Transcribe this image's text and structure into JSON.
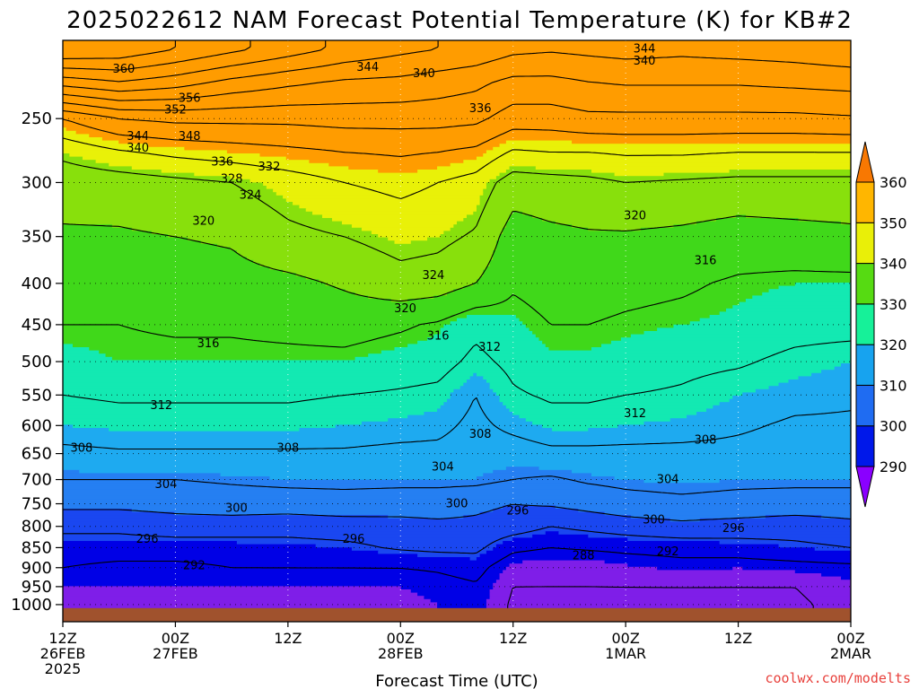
{
  "title": "2025022612 NAM Forecast Potential Temperature (K) for KB#2",
  "credit": "coolwx.com/modelts",
  "chart_data": {
    "type": "heatmap",
    "title": "2025022612 NAM Forecast Potential Temperature (K) for KB#2",
    "xlabel": "Forecast Time (UTC)",
    "ylabel": "",
    "x_ticks": [
      {
        "hour": 0,
        "lines": [
          "12Z",
          "26FEB",
          "2025"
        ]
      },
      {
        "hour": 12,
        "lines": [
          "00Z",
          "27FEB"
        ]
      },
      {
        "hour": 24,
        "lines": [
          "12Z"
        ]
      },
      {
        "hour": 36,
        "lines": [
          "00Z",
          "28FEB"
        ]
      },
      {
        "hour": 48,
        "lines": [
          "12Z"
        ]
      },
      {
        "hour": 60,
        "lines": [
          "00Z",
          "1MAR"
        ]
      },
      {
        "hour": 72,
        "lines": [
          "12Z"
        ]
      },
      {
        "hour": 84,
        "lines": [
          "00Z",
          "2MAR"
        ]
      }
    ],
    "xlim": [
      0,
      84
    ],
    "y_ticks": [
      250,
      300,
      350,
      400,
      450,
      500,
      550,
      600,
      650,
      700,
      750,
      800,
      850,
      900,
      950,
      1000
    ],
    "ylim": [
      200,
      1050
    ],
    "y_scale": "log",
    "y_inverted": true,
    "grid": true,
    "colorbar": {
      "levels": [
        290,
        300,
        310,
        320,
        330,
        340,
        350,
        360
      ],
      "colors": [
        "#8a00ff",
        "#0018ea",
        "#1f6cf2",
        "#17a3ef",
        "#16f199",
        "#56db12",
        "#e9ef08",
        "#ffb600",
        "#f87802"
      ]
    },
    "fill_colors": {
      "285": "#7f1ee8",
      "290": "#0000e6",
      "295": "#1a47f0",
      "300": "#257ff2",
      "305": "#1eaaf0",
      "310": "#13e9b2",
      "315": "#40d81a",
      "320": "#88e00c",
      "325": "#e9f108",
      "330": "#ff9c00"
    },
    "ground_color": "#a0522d",
    "pressure_levels": [
      1000,
      950,
      900,
      850,
      800,
      750,
      700,
      650,
      600,
      550,
      500,
      450,
      400,
      350,
      300,
      275,
      250,
      225,
      205
    ],
    "times": [
      0,
      6,
      12,
      18,
      24,
      30,
      36,
      40,
      44,
      48,
      52,
      56,
      60,
      66,
      72,
      78,
      84
    ],
    "theta": [
      [
        289,
        289.5,
        289.5,
        289.5,
        289.5,
        289.5,
        289.5,
        290,
        291,
        287.5,
        287.5,
        287.5,
        287.5,
        287.5,
        287.5,
        287.5,
        289
      ],
      [
        290,
        290,
        290,
        290,
        290,
        290,
        290,
        290.5,
        291.5,
        288,
        288,
        288,
        288,
        288,
        288,
        288,
        289.5
      ],
      [
        292,
        291,
        291,
        292,
        292,
        292,
        292,
        292.5,
        293.5,
        289,
        288.5,
        288.5,
        289.5,
        290.5,
        290,
        290.5,
        291
      ],
      [
        294,
        294,
        294,
        294,
        294.5,
        295,
        296.5,
        297,
        297,
        293,
        292,
        292.5,
        293,
        293.5,
        294,
        295,
        296
      ],
      [
        297,
        297,
        298,
        298,
        297.5,
        298,
        298.5,
        299,
        299,
        298,
        296,
        297,
        298,
        299,
        298.5,
        298,
        299
      ],
      [
        301,
        301,
        301.5,
        302,
        302,
        302.5,
        302,
        302,
        301,
        300,
        300.5,
        301.5,
        302.5,
        303,
        302.5,
        302,
        302
      ],
      [
        304,
        304,
        304,
        304.5,
        305,
        305,
        305,
        305,
        305,
        304,
        303.5,
        304.5,
        305,
        305.5,
        305,
        305,
        305
      ],
      [
        307,
        307.5,
        307.5,
        307.5,
        307.5,
        307.5,
        307,
        307,
        306,
        306,
        307,
        307,
        307,
        307,
        307,
        306.5,
        306
      ],
      [
        310,
        310.5,
        310.5,
        310.5,
        310.5,
        310,
        309.5,
        309,
        307,
        309,
        310.5,
        310.5,
        310,
        309.5,
        308.5,
        307.5,
        307.5
      ],
      [
        312,
        312.5,
        312.5,
        312.5,
        312.5,
        312,
        311.5,
        311,
        308,
        311.5,
        312.5,
        312.5,
        312,
        311.5,
        310,
        309,
        308.5
      ],
      [
        314,
        315,
        315,
        315,
        315,
        315,
        314,
        313.5,
        311,
        313,
        314.5,
        314.5,
        314,
        313,
        312.5,
        311,
        310
      ],
      [
        316,
        316,
        316.5,
        316.5,
        317,
        317.5,
        316.5,
        315.5,
        313,
        314.5,
        316,
        316,
        315.5,
        315,
        314.5,
        313.5,
        313.5
      ],
      [
        318,
        317.5,
        318,
        318.5,
        319,
        320.5,
        322.5,
        322,
        320,
        316.5,
        317.5,
        317.5,
        317,
        316.5,
        315.5,
        315,
        315
      ],
      [
        319.5,
        319.5,
        320,
        320.5,
        323,
        324,
        325.5,
        325,
        323.5,
        318,
        319,
        319.5,
        319.5,
        319,
        318,
        318.5,
        319
      ],
      [
        321.5,
        322,
        323,
        324,
        326,
        328,
        329,
        328,
        326.5,
        322,
        322.5,
        323,
        324,
        323.5,
        323,
        323,
        323
      ],
      [
        325,
        327.5,
        329,
        330,
        331,
        332,
        332.5,
        332,
        331,
        327.5,
        328,
        328,
        328.5,
        328.5,
        328,
        328,
        328
      ],
      [
        332,
        336,
        337,
        337,
        337,
        337.5,
        337.5,
        337.5,
        337,
        334,
        334,
        335,
        335,
        335,
        335,
        335,
        335.5
      ],
      [
        350,
        352,
        350,
        347,
        345,
        343.5,
        343,
        342,
        341,
        339,
        339,
        340,
        340.5,
        340.5,
        340.5,
        341,
        341.5
      ],
      [
        364,
        363,
        360,
        357,
        354,
        351,
        349,
        348,
        347,
        345,
        344.5,
        345,
        345.5,
        345,
        345.5,
        346,
        347
      ]
    ],
    "contour_levels": [
      288,
      292,
      296,
      300,
      304,
      308,
      312,
      316,
      320,
      324,
      328,
      332,
      336,
      340,
      344,
      348,
      352,
      356,
      360
    ],
    "contour_labels": [
      {
        "text": "360",
        "hour": 6.5,
        "p": 217
      },
      {
        "text": "356",
        "hour": 13.5,
        "p": 236
      },
      {
        "text": "352",
        "hour": 12,
        "p": 244
      },
      {
        "text": "348",
        "hour": 13.5,
        "p": 263
      },
      {
        "text": "344",
        "hour": 8,
        "p": 263
      },
      {
        "text": "340",
        "hour": 8,
        "p": 272
      },
      {
        "text": "344",
        "hour": 32.5,
        "p": 216
      },
      {
        "text": "340",
        "hour": 38.5,
        "p": 220
      },
      {
        "text": "344",
        "hour": 62,
        "p": 205
      },
      {
        "text": "340",
        "hour": 62,
        "p": 212
      },
      {
        "text": "336",
        "hour": 44.5,
        "p": 243
      },
      {
        "text": "336",
        "hour": 17,
        "p": 283
      },
      {
        "text": "332",
        "hour": 22,
        "p": 287
      },
      {
        "text": "328",
        "hour": 18,
        "p": 297
      },
      {
        "text": "324",
        "hour": 20,
        "p": 311
      },
      {
        "text": "320",
        "hour": 15,
        "p": 335
      },
      {
        "text": "320",
        "hour": 61,
        "p": 330
      },
      {
        "text": "324",
        "hour": 39.5,
        "p": 391
      },
      {
        "text": "316",
        "hour": 68.5,
        "p": 375
      },
      {
        "text": "320",
        "hour": 36.5,
        "p": 430
      },
      {
        "text": "316",
        "hour": 15.5,
        "p": 475
      },
      {
        "text": "316",
        "hour": 40,
        "p": 465
      },
      {
        "text": "312",
        "hour": 45.5,
        "p": 480
      },
      {
        "text": "312",
        "hour": 10.5,
        "p": 567
      },
      {
        "text": "312",
        "hour": 61,
        "p": 580
      },
      {
        "text": "308",
        "hour": 44.5,
        "p": 615
      },
      {
        "text": "308",
        "hour": 2,
        "p": 640
      },
      {
        "text": "308",
        "hour": 24,
        "p": 640
      },
      {
        "text": "308",
        "hour": 68.5,
        "p": 625
      },
      {
        "text": "304",
        "hour": 40.5,
        "p": 675
      },
      {
        "text": "304",
        "hour": 11,
        "p": 710
      },
      {
        "text": "304",
        "hour": 64.5,
        "p": 700
      },
      {
        "text": "300",
        "hour": 18.5,
        "p": 760
      },
      {
        "text": "300",
        "hour": 42,
        "p": 750
      },
      {
        "text": "296",
        "hour": 48.5,
        "p": 765
      },
      {
        "text": "300",
        "hour": 63,
        "p": 785
      },
      {
        "text": "296",
        "hour": 9,
        "p": 830
      },
      {
        "text": "296",
        "hour": 31,
        "p": 830
      },
      {
        "text": "296",
        "hour": 71.5,
        "p": 805
      },
      {
        "text": "292",
        "hour": 14,
        "p": 895
      },
      {
        "text": "292",
        "hour": 64.5,
        "p": 860
      },
      {
        "text": "288",
        "hour": 55.5,
        "p": 870
      }
    ]
  }
}
